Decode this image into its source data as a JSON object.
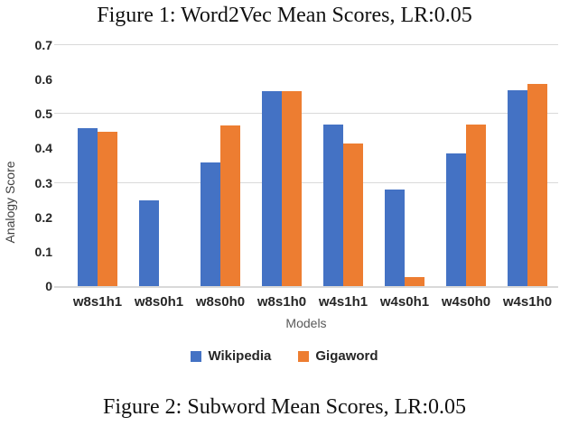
{
  "figure_top_caption": "Figure 1: Word2Vec Mean Scores, LR:0.05",
  "figure_bottom_caption": "Figure 2: Subword Mean Scores, LR:0.05",
  "chart_data": {
    "type": "bar",
    "title": "Figure 1: Word2Vec Mean Scores, LR:0.05",
    "categories": [
      "w8s1h1",
      "w8s0h1",
      "w8s0h0",
      "w8s1h0",
      "w4s1h1",
      "w4s0h1",
      "w4s0h0",
      "w4s1h0"
    ],
    "series": [
      {
        "name": "Wikipedia",
        "color": "#4472C4",
        "values": [
          0.46,
          0.249,
          0.358,
          0.565,
          0.47,
          0.281,
          0.385,
          0.568
        ]
      },
      {
        "name": "Gigaword",
        "color": "#ED7D31",
        "values": [
          0.448,
          null,
          0.466,
          0.565,
          0.415,
          0.025,
          0.47,
          0.587
        ]
      }
    ],
    "xlabel": "Models",
    "ylabel": "Analogy Score",
    "ylim": [
      0,
      0.7
    ],
    "ytick_labels": [
      "0",
      "0.1",
      "0.2",
      "0.3",
      "0.4",
      "0.5",
      "0.6",
      "0.7"
    ],
    "gridline_values": [
      0.3,
      0.5,
      0.7
    ],
    "grid": "partial-horizontal",
    "legend_position": "bottom"
  }
}
